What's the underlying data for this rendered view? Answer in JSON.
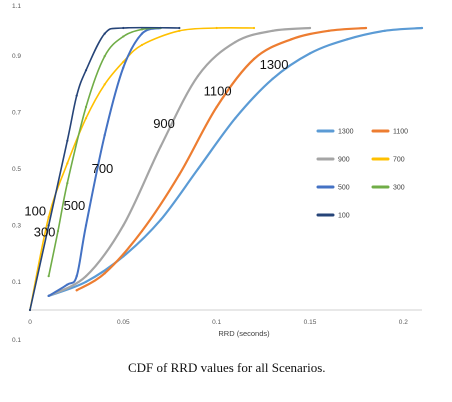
{
  "caption": "CDF of RRD values for all Scenarios.",
  "chart_data": {
    "type": "line",
    "title": "",
    "xlabel": "RRD (seconds)",
    "ylabel": "",
    "xlim": [
      0,
      0.21
    ],
    "ylim": [
      0,
      1.0
    ],
    "x_ticks": [
      "0",
      "0.05",
      "0.1",
      "0.15",
      "0.2"
    ],
    "y_ticks": [
      "0.1",
      "0.3",
      "0.5",
      "0.7",
      "0.9"
    ],
    "y_bottom_label": "0.1",
    "y_top_label": "1.1",
    "grid": false,
    "legend_position": "right",
    "series": [
      {
        "name": "1300",
        "color": "#5B9BD5",
        "width": 2.2,
        "x": [
          0.01,
          0.03,
          0.05,
          0.07,
          0.09,
          0.11,
          0.13,
          0.15,
          0.17,
          0.19,
          0.21
        ],
        "y": [
          0.05,
          0.1,
          0.19,
          0.32,
          0.5,
          0.68,
          0.82,
          0.91,
          0.96,
          0.99,
          1.0
        ]
      },
      {
        "name": "1100",
        "color": "#ED7D31",
        "width": 2.2,
        "x": [
          0.025,
          0.04,
          0.06,
          0.08,
          0.1,
          0.12,
          0.14,
          0.16,
          0.18
        ],
        "y": [
          0.07,
          0.13,
          0.28,
          0.48,
          0.72,
          0.89,
          0.96,
          0.99,
          1.0
        ]
      },
      {
        "name": "900",
        "color": "#A5A5A5",
        "width": 2.2,
        "x": [
          0.01,
          0.03,
          0.05,
          0.07,
          0.09,
          0.11,
          0.13,
          0.15
        ],
        "y": [
          0.05,
          0.12,
          0.3,
          0.58,
          0.83,
          0.95,
          0.99,
          1.0
        ]
      },
      {
        "name": "700",
        "color": "#FFC000",
        "width": 1.6,
        "x": [
          0,
          0.01,
          0.02,
          0.03,
          0.04,
          0.05,
          0.06,
          0.08,
          0.1,
          0.12
        ],
        "y": [
          0,
          0.33,
          0.52,
          0.68,
          0.8,
          0.88,
          0.94,
          0.99,
          1.0,
          1.0
        ]
      },
      {
        "name": "500",
        "color": "#4472C4",
        "width": 2.0,
        "x": [
          0.01,
          0.02,
          0.025,
          0.03,
          0.04,
          0.05,
          0.06,
          0.07
        ],
        "y": [
          0.05,
          0.09,
          0.12,
          0.3,
          0.62,
          0.86,
          0.98,
          1.0
        ]
      },
      {
        "name": "300",
        "color": "#70AD47",
        "width": 1.6,
        "x": [
          0.01,
          0.015,
          0.02,
          0.03,
          0.04,
          0.05,
          0.06,
          0.07
        ],
        "y": [
          0.12,
          0.28,
          0.45,
          0.72,
          0.9,
          0.97,
          0.995,
          1.0
        ]
      },
      {
        "name": "100",
        "color": "#264478",
        "width": 1.6,
        "x": [
          0,
          0.01,
          0.02,
          0.025,
          0.03,
          0.04,
          0.05,
          0.08
        ],
        "y": [
          0,
          0.3,
          0.6,
          0.76,
          0.85,
          0.98,
          1.0,
          1.0
        ]
      }
    ],
    "legend": [
      {
        "label": "1300",
        "series": "1300"
      },
      {
        "label": "1100",
        "series": "1100"
      },
      {
        "label": "900",
        "series": "900"
      },
      {
        "label": "700",
        "series": "700"
      },
      {
        "label": "500",
        "series": "500"
      },
      {
        "label": "300",
        "series": "300"
      },
      {
        "label": "100",
        "series": "100"
      }
    ],
    "annotations": [
      {
        "text": "1300",
        "x": 0.123,
        "y": 0.855
      },
      {
        "text": "1100",
        "x": 0.093,
        "y": 0.76
      },
      {
        "text": "900",
        "x": 0.066,
        "y": 0.645
      },
      {
        "text": "700",
        "x": 0.033,
        "y": 0.485
      },
      {
        "text": "500",
        "x": 0.018,
        "y": 0.355
      },
      {
        "text": "100",
        "x": -0.003,
        "y": 0.335
      },
      {
        "text": "300",
        "x": 0.002,
        "y": 0.26
      }
    ]
  }
}
